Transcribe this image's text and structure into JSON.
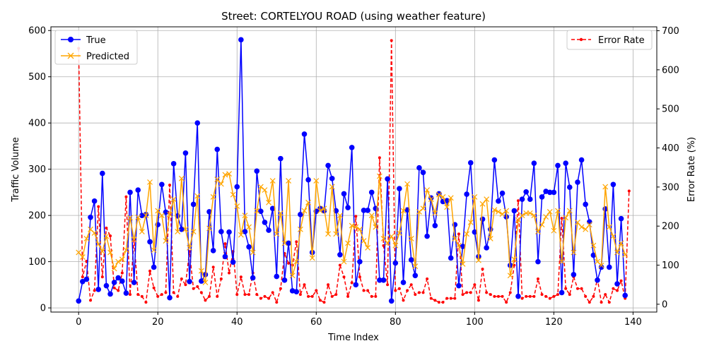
{
  "chart_data": {
    "type": "line",
    "title": "Street: CORTELYOU ROAD (using weather feature)",
    "xlabel": "Time Index",
    "ylabel": "Traffic Volume",
    "y2label": "Error Rate (%)",
    "xlim": [
      -7,
      146
    ],
    "ylim": [
      -9,
      608
    ],
    "y2lim": [
      -20,
      710
    ],
    "xticks": [
      0,
      20,
      40,
      60,
      80,
      100,
      120,
      140
    ],
    "yticks": [
      0,
      100,
      200,
      300,
      400,
      500,
      600
    ],
    "y2ticks": [
      0,
      100,
      200,
      300,
      400,
      500,
      600,
      700
    ],
    "grid": true,
    "legend_left_placement": "upper-left",
    "legend_right_placement": "upper-right",
    "series": [
      {
        "name": "True",
        "axis": "left",
        "color": "#0000ff",
        "style": "solid",
        "marker": "circle",
        "values": [
          15,
          57,
          62,
          196,
          231,
          40,
          291,
          48,
          30,
          55,
          65,
          58,
          32,
          250,
          55,
          255,
          200,
          202,
          143,
          88,
          180,
          267,
          207,
          22,
          312,
          199,
          170,
          335,
          57,
          224,
          400,
          58,
          72,
          208,
          124,
          343,
          165,
          111,
          164,
          99,
          262,
          580,
          165,
          132,
          65,
          296,
          209,
          185,
          168,
          215,
          68,
          323,
          60,
          140,
          37,
          35,
          202,
          376,
          277,
          120,
          209,
          215,
          210,
          308,
          280,
          210,
          115,
          247,
          217,
          347,
          50,
          100,
          211,
          211,
          250,
          215,
          60,
          60,
          279,
          15,
          97,
          258,
          55,
          212,
          104,
          70,
          303,
          293,
          155,
          238,
          178,
          247,
          230,
          232,
          108,
          180,
          48,
          133,
          246,
          314,
          164,
          111,
          192,
          130,
          170,
          320,
          231,
          248,
          197,
          92,
          210,
          25,
          235,
          251,
          235,
          313,
          100,
          240,
          252,
          250,
          250,
          308,
          33,
          313,
          261,
          72,
          272,
          320,
          224,
          186,
          114,
          60,
          88,
          214,
          88,
          267,
          52,
          193,
          27
        ]
      },
      {
        "name": "Predicted",
        "axis": "left",
        "color": "#ffa500",
        "style": "solid",
        "marker": "x",
        "values": [
          120,
          110,
          150,
          170,
          162,
          138,
          122,
          155,
          120,
          85,
          100,
          105,
          125,
          195,
          148,
          196,
          165,
          200,
          272,
          125,
          210,
          200,
          145,
          202,
          235,
          165,
          280,
          170,
          130,
          165,
          242,
          80,
          55,
          172,
          240,
          278,
          268,
          288,
          290,
          245,
          220,
          158,
          200,
          175,
          120,
          210,
          262,
          255,
          228,
          275,
          160,
          205,
          140,
          275,
          70,
          100,
          170,
          210,
          228,
          108,
          275,
          210,
          215,
          160,
          262,
          160,
          200,
          100,
          140,
          178,
          175,
          170,
          145,
          130,
          200,
          175,
          285,
          150,
          140,
          155,
          135,
          162,
          210,
          268,
          150,
          90,
          208,
          215,
          255,
          235,
          205,
          245,
          240,
          218,
          238,
          150,
          135,
          95,
          160,
          185,
          240,
          103,
          225,
          235,
          150,
          212,
          208,
          203,
          210,
          70,
          105,
          190,
          200,
          205,
          205,
          200,
          165,
          180,
          197,
          208,
          167,
          210,
          100,
          195,
          210,
          120,
          185,
          175,
          170,
          180,
          135,
          100,
          92,
          262,
          175,
          155,
          120,
          140,
          115
        ]
      },
      {
        "name": "Error Rate",
        "axis": "right",
        "color": "#ff0000",
        "style": "dashed",
        "marker": "dot",
        "values": [
          655,
          70,
          110,
          10,
          35,
          250,
          70,
          195,
          175,
          42,
          35,
          80,
          275,
          25,
          165,
          25,
          20,
          5,
          85,
          42,
          20,
          25,
          30,
          305,
          30,
          20,
          65,
          50,
          135,
          40,
          45,
          30,
          10,
          20,
          95,
          20,
          65,
          155,
          80,
          135,
          25,
          70,
          25,
          25,
          80,
          25,
          15,
          20,
          15,
          30,
          5,
          40,
          130,
          105,
          100,
          160,
          25,
          50,
          20,
          20,
          35,
          10,
          5,
          50,
          20,
          25,
          100,
          70,
          20,
          55,
          225,
          70,
          35,
          35,
          20,
          20,
          375,
          150,
          50,
          675,
          35,
          40,
          10,
          35,
          50,
          25,
          30,
          30,
          65,
          15,
          10,
          5,
          5,
          15,
          15,
          15,
          180,
          25,
          30,
          30,
          50,
          10,
          90,
          30,
          25,
          20,
          20,
          20,
          5,
          30,
          100,
          265,
          15,
          20,
          20,
          20,
          65,
          25,
          20,
          15,
          20,
          25,
          220,
          40,
          25,
          70,
          40,
          40,
          20,
          5,
          20,
          65,
          5,
          25,
          5,
          40,
          35,
          60,
          15,
          290
        ]
      }
    ]
  }
}
